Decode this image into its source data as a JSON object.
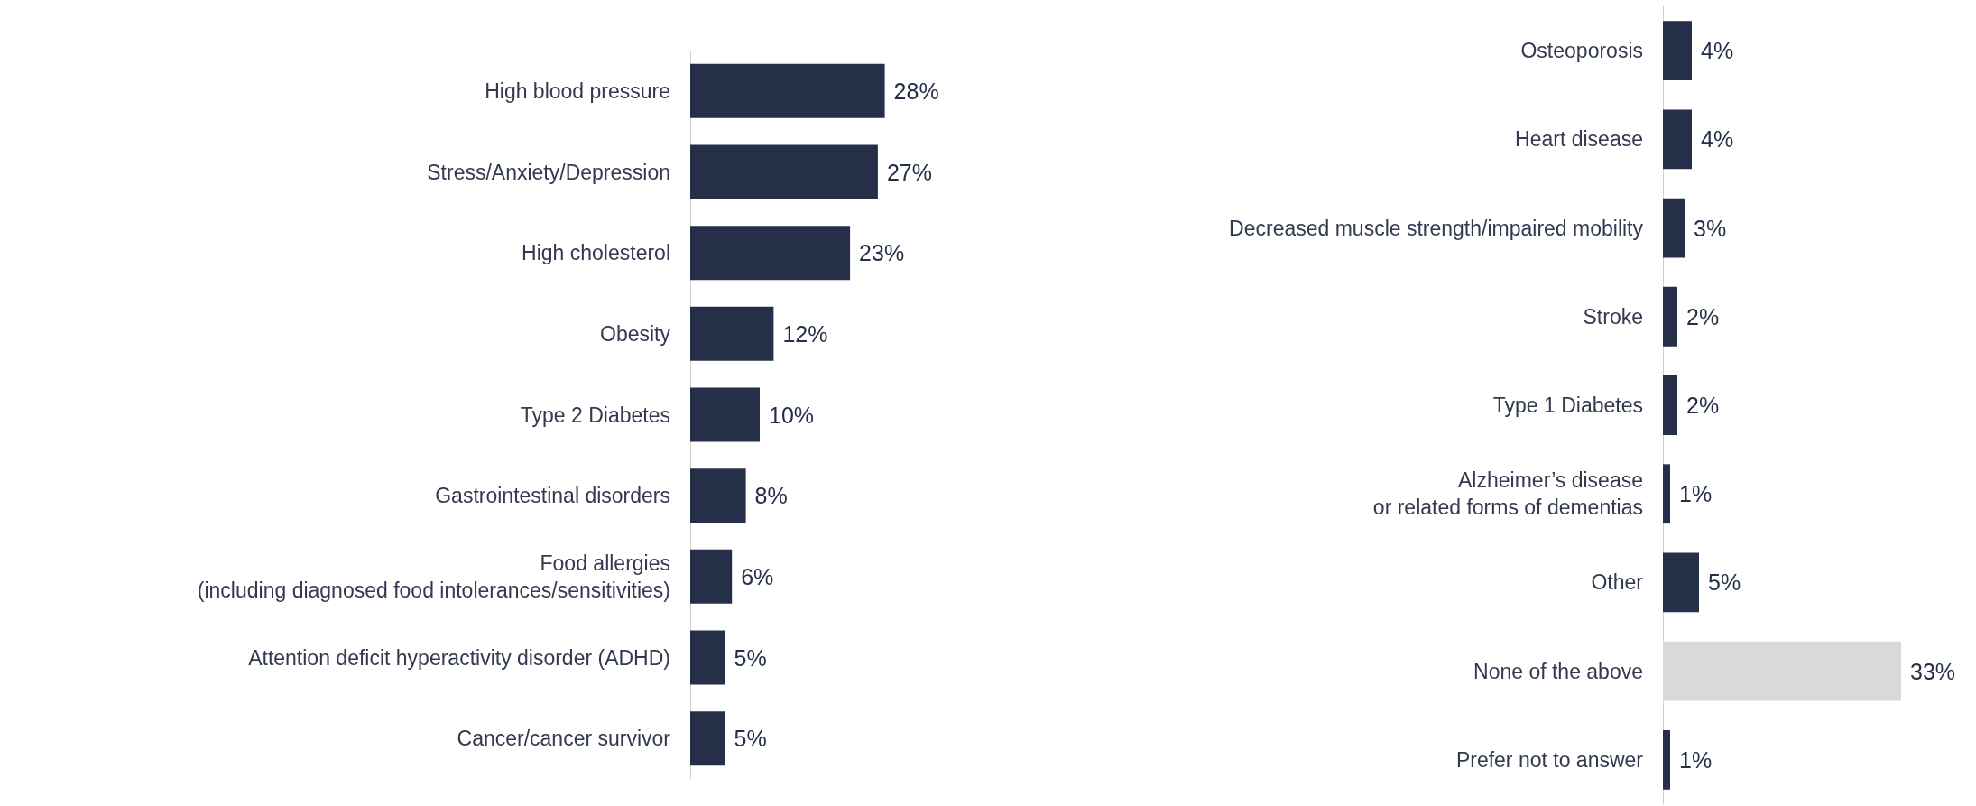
{
  "chart_data": [
    {
      "type": "bar",
      "orientation": "horizontal",
      "categories": [
        "High blood pressure",
        "Stress/Anxiety/Depression",
        "High cholesterol",
        "Obesity",
        "Type 2 Diabetes",
        "Gastrointestinal disorders",
        "Food allergies\n(including diagnosed food intolerances/sensitivities)",
        "Attention deficit hyperactivity disorder (ADHD)",
        "Cancer/cancer survivor"
      ],
      "values": [
        28,
        27,
        23,
        12,
        10,
        8,
        6,
        5,
        5
      ],
      "value_labels": [
        "28%",
        "27%",
        "23%",
        "12%",
        "10%",
        "8%",
        "6%",
        "5%",
        "5%"
      ],
      "color": "#252f48"
    },
    {
      "type": "bar",
      "orientation": "horizontal",
      "categories": [
        "Osteoporosis",
        "Heart disease",
        "Decreased muscle strength/impaired mobility",
        "Stroke",
        "Type 1 Diabetes",
        "Alzheimer’s disease\nor related forms of dementias",
        "Other",
        "None of the above",
        "Prefer not to answer"
      ],
      "values": [
        4,
        4,
        3,
        2,
        2,
        1,
        5,
        33,
        1
      ],
      "value_labels": [
        "4%",
        "4%",
        "3%",
        "2%",
        "2%",
        "1%",
        "5%",
        "33%",
        "1%"
      ],
      "colors": [
        "#252f48",
        "#252f48",
        "#252f48",
        "#252f48",
        "#252f48",
        "#252f48",
        "#252f48",
        "#d9d9d9",
        "#252f48"
      ]
    }
  ]
}
